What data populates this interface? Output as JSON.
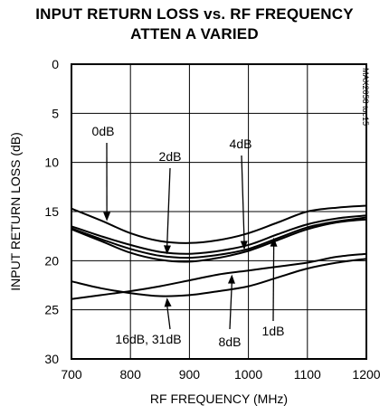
{
  "chart_data": {
    "type": "line",
    "title": "INPUT RETURN LOSS vs. RF FREQUENCY",
    "subtitle": "ATTEN A VARIED",
    "xlabel": "RF FREQUENCY (MHz)",
    "ylabel": "INPUT RETURN LOSS (dB)",
    "xlim": [
      700,
      1200
    ],
    "ylim": [
      0,
      30
    ],
    "y_inverted": true,
    "grid": true,
    "x_ticks": [
      700,
      800,
      900,
      1000,
      1100,
      1200
    ],
    "y_ticks": [
      0,
      5,
      10,
      15,
      20,
      25,
      30
    ],
    "watermark": "MAX2058 toc15",
    "series": [
      {
        "name": "0dB",
        "x": [
          700,
          750,
          800,
          850,
          900,
          950,
          1000,
          1050,
          1100,
          1150,
          1200
        ],
        "y": [
          14.7,
          15.9,
          17.2,
          18.0,
          18.2,
          17.9,
          17.2,
          16.1,
          15.0,
          14.6,
          14.4
        ]
      },
      {
        "name": "1dB",
        "x": [
          700,
          750,
          800,
          850,
          900,
          950,
          1000,
          1050,
          1100,
          1150,
          1200
        ],
        "y": [
          16.5,
          17.5,
          18.4,
          19.1,
          19.3,
          19.0,
          18.4,
          17.3,
          16.3,
          15.7,
          15.4
        ]
      },
      {
        "name": "2dB",
        "x": [
          700,
          750,
          800,
          850,
          900,
          950,
          1000,
          1050,
          1100,
          1150,
          1200
        ],
        "y": [
          16.7,
          17.8,
          18.8,
          19.5,
          19.7,
          19.4,
          18.8,
          17.7,
          16.6,
          16.0,
          15.6
        ]
      },
      {
        "name": "4dB",
        "x": [
          700,
          750,
          800,
          850,
          900,
          950,
          1000,
          1050,
          1100,
          1150,
          1200
        ],
        "y": [
          16.8,
          18.0,
          19.2,
          19.9,
          20.1,
          19.7,
          19.0,
          17.9,
          16.8,
          16.1,
          15.8
        ]
      },
      {
        "name": "8dB",
        "x": [
          700,
          750,
          800,
          850,
          900,
          950,
          1000,
          1050,
          1100,
          1150,
          1200
        ],
        "y": [
          23.9,
          23.5,
          23.1,
          22.6,
          22.0,
          21.4,
          21.0,
          20.6,
          20.2,
          19.6,
          19.3
        ]
      },
      {
        "name": "16dB, 31dB",
        "x": [
          700,
          750,
          800,
          850,
          900,
          950,
          1000,
          1050,
          1100,
          1150,
          1200
        ],
        "y": [
          22.1,
          22.8,
          23.3,
          23.6,
          23.5,
          23.1,
          22.6,
          21.7,
          20.8,
          20.2,
          19.8
        ]
      }
    ],
    "annotations": [
      {
        "text": "0dB",
        "series": "0dB"
      },
      {
        "text": "2dB",
        "series": "2dB"
      },
      {
        "text": "4dB",
        "series": "4dB"
      },
      {
        "text": "1dB",
        "series": "1dB"
      },
      {
        "text": "16dB, 31dB",
        "series": "16dB, 31dB"
      },
      {
        "text": "8dB",
        "series": "8dB"
      }
    ]
  }
}
